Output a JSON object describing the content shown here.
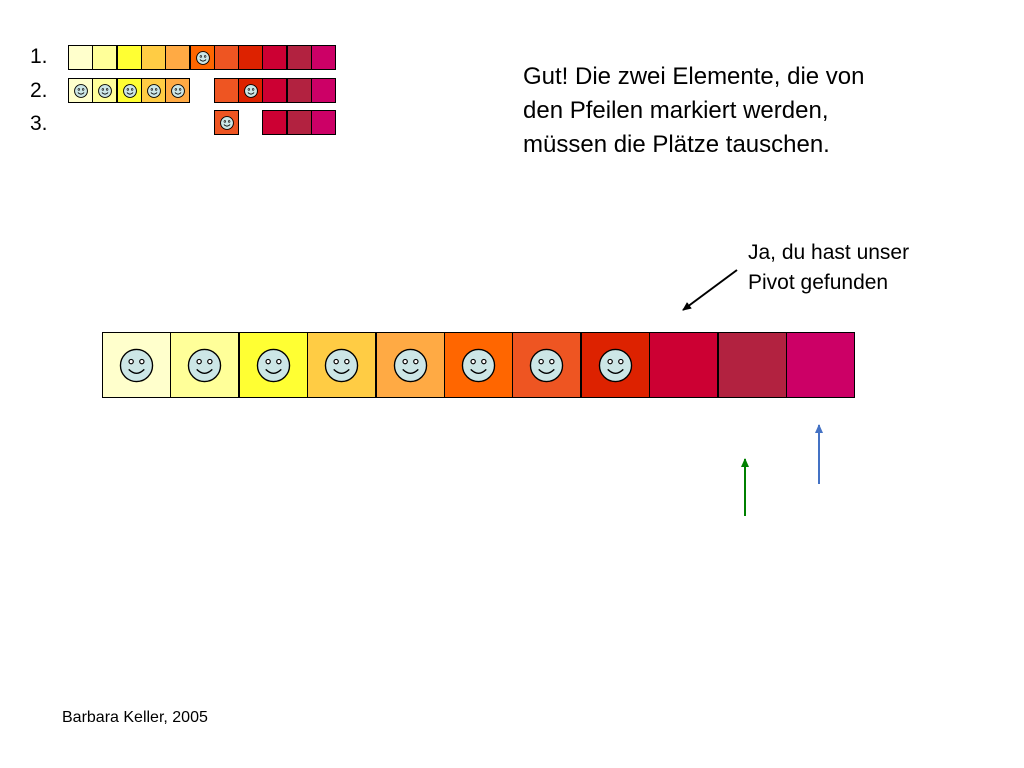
{
  "rows": [
    {
      "label": "1.",
      "cells": [
        {
          "color": "#FFFFCC",
          "face": false
        },
        {
          "color": "#FFFF99",
          "face": false
        },
        {
          "color": "#FFFF33",
          "face": false
        },
        {
          "color": "#FFCC44",
          "face": false
        },
        {
          "color": "#FFAA44",
          "face": false
        },
        {
          "color": "#FF6600",
          "face": true
        },
        {
          "color": "#EE5522",
          "face": false
        },
        {
          "color": "#DD2200",
          "face": false
        },
        {
          "color": "#CC0033",
          "face": false
        },
        {
          "color": "#B22240",
          "face": false
        },
        {
          "color": "#CC0066",
          "face": false
        }
      ]
    },
    {
      "label": "2.",
      "cells": [
        {
          "color": "#FFFFCC",
          "face": true
        },
        {
          "color": "#FFFF99",
          "face": true
        },
        {
          "color": "#FFFF33",
          "face": true
        },
        {
          "color": "#FFCC44",
          "face": true
        },
        {
          "color": "#FFAA44",
          "face": true
        },
        null,
        {
          "color": "#EE5522",
          "face": false
        },
        {
          "color": "#DD2200",
          "face": true
        },
        {
          "color": "#CC0033",
          "face": false
        },
        {
          "color": "#B22240",
          "face": false
        },
        {
          "color": "#CC0066",
          "face": false
        }
      ]
    },
    {
      "label": "3.",
      "cells": [
        null,
        null,
        null,
        null,
        null,
        null,
        {
          "color": "#EE5522",
          "face": true
        },
        null,
        {
          "color": "#CC0033",
          "face": false
        },
        {
          "color": "#B22240",
          "face": false
        },
        {
          "color": "#CC0066",
          "face": false
        }
      ]
    }
  ],
  "message": {
    "line1": "Gut! Die zwei Elemente, die von",
    "line2": "den Pfeilen markiert werden,",
    "line3": "müssen die Plätze tauschen."
  },
  "note": {
    "line1": "Ja, du hast unser",
    "line2": "Pivot gefunden"
  },
  "main_array": [
    {
      "color": "#FFFFCC",
      "face": true
    },
    {
      "color": "#FFFF99",
      "face": true
    },
    {
      "color": "#FFFF33",
      "face": true
    },
    {
      "color": "#FFCC44",
      "face": true
    },
    {
      "color": "#FFAA44",
      "face": true
    },
    {
      "color": "#FF6600",
      "face": true
    },
    {
      "color": "#EE5522",
      "face": true
    },
    {
      "color": "#DD2200",
      "face": true
    },
    {
      "color": "#CC0033",
      "face": false
    },
    {
      "color": "#B22240",
      "face": false
    },
    {
      "color": "#CC0066",
      "face": false
    }
  ],
  "arrows": {
    "green_color": "#008000",
    "blue_color": "#4472C4",
    "pointer_color": "#000000"
  },
  "credit": "Barbara Keller, 2005",
  "face_color": "#CCE6E6"
}
